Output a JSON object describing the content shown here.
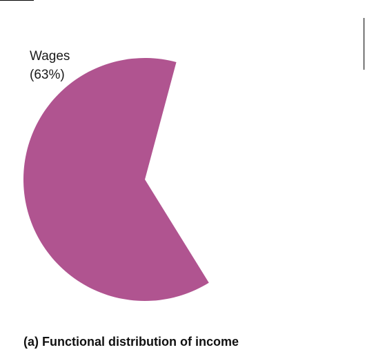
{
  "chart_data": {
    "type": "pie",
    "title": "(a) Functional distribution of income",
    "slices": [
      {
        "label": "Wages",
        "value_label": "(63%)",
        "value": 63,
        "color": "#b05490",
        "visible": true
      }
    ],
    "start_angle_deg": 15,
    "direction": "counterclockwise"
  }
}
